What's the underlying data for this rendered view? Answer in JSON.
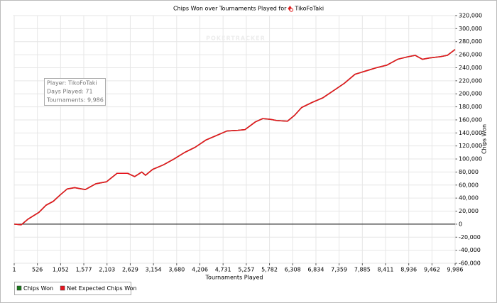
{
  "chart_data": {
    "type": "line",
    "title": "Chips Won over Tournaments Played for",
    "player": "TikoFoTaki",
    "watermark": "POKERTRACKER",
    "info": [
      "Player: TikoFoTaki",
      "Days Played: 71",
      "Tournaments: 9,986"
    ],
    "xlabel": "Tournaments Played",
    "ylabel": "Chips Won",
    "x": [
      1,
      160,
      320,
      560,
      720,
      885,
      1045,
      1200,
      1370,
      1610,
      1850,
      2090,
      2330,
      2570,
      2730,
      2890,
      2975,
      3135,
      3380,
      3620,
      3860,
      4100,
      4340,
      4580,
      4820,
      5065,
      5225,
      5465,
      5630,
      5790,
      5950,
      6190,
      6350,
      6510,
      6755,
      6995,
      7235,
      7475,
      7720,
      7960,
      8200,
      8440,
      8685,
      8925,
      9085,
      9245,
      9405,
      9650,
      9810,
      9986
    ],
    "series": [
      {
        "name": "Chips Won",
        "color": "#1a7a1a",
        "values": [
          0,
          -1000,
          8000,
          18000,
          29000,
          35000,
          45000,
          54000,
          56000,
          53000,
          62000,
          65000,
          78000,
          78000,
          73000,
          80000,
          75000,
          84000,
          91000,
          100000,
          110000,
          118000,
          129000,
          136000,
          143000,
          144000,
          145000,
          157000,
          162000,
          161000,
          159000,
          158000,
          167000,
          179000,
          187000,
          194000,
          205000,
          216000,
          230000,
          235000,
          240000,
          244000,
          253000,
          257000,
          259000,
          253000,
          255000,
          257000,
          259000,
          268000
        ]
      },
      {
        "name": "Net Expected Chips Won",
        "color": "#e8141e",
        "values": [
          0,
          -1000,
          8000,
          18000,
          29000,
          35000,
          45000,
          54000,
          56000,
          53000,
          62000,
          65000,
          78000,
          78000,
          73000,
          80000,
          75000,
          84000,
          91000,
          100000,
          110000,
          118000,
          129000,
          136000,
          143000,
          144000,
          145000,
          157000,
          162000,
          161000,
          159000,
          158000,
          167000,
          179000,
          187000,
          194000,
          205000,
          216000,
          230000,
          235000,
          240000,
          244000,
          253000,
          257000,
          259000,
          253000,
          255000,
          257000,
          259000,
          268000
        ]
      }
    ],
    "xlim": [
      1,
      9986
    ],
    "xticks": [
      1,
      526,
      {
        "value": 1052,
        "label": "1,052"
      },
      {
        "value": 1577,
        "label": "1,577"
      },
      {
        "value": 2103,
        "label": "2,103"
      },
      {
        "value": 2629,
        "label": "2,629"
      },
      {
        "value": 3154,
        "label": "3,154"
      },
      {
        "value": 3680,
        "label": "3,680"
      },
      {
        "value": 4206,
        "label": "4,206"
      },
      {
        "value": 4731,
        "label": "4,731"
      },
      {
        "value": 5257,
        "label": "5,257"
      },
      {
        "value": 5782,
        "label": "5,782"
      },
      {
        "value": 6308,
        "label": "6,308"
      },
      {
        "value": 6834,
        "label": "6,834"
      },
      {
        "value": 7359,
        "label": "7,359"
      },
      {
        "value": 7885,
        "label": "7,885"
      },
      {
        "value": 8411,
        "label": "8,411"
      },
      {
        "value": 8936,
        "label": "8,936"
      },
      {
        "value": 9462,
        "label": "9,462"
      },
      {
        "value": 9986,
        "label": "9,986"
      }
    ],
    "ylim": [
      -60000,
      320000
    ],
    "yticks": [
      {
        "value": -60000,
        "label": "-60,000"
      },
      {
        "value": -40000,
        "label": "-40,000"
      },
      {
        "value": -20000,
        "label": "-20,000"
      },
      0,
      {
        "value": 20000,
        "label": "20,000"
      },
      {
        "value": 40000,
        "label": "40,000"
      },
      {
        "value": 60000,
        "label": "60,000"
      },
      {
        "value": 80000,
        "label": "80,000"
      },
      {
        "value": 100000,
        "label": "100,000"
      },
      {
        "value": 120000,
        "label": "120,000"
      },
      {
        "value": 140000,
        "label": "140,000"
      },
      {
        "value": 160000,
        "label": "160,000"
      },
      {
        "value": 180000,
        "label": "180,000"
      },
      {
        "value": 200000,
        "label": "200,000"
      },
      {
        "value": 220000,
        "label": "220,000"
      },
      {
        "value": 240000,
        "label": "240,000"
      },
      {
        "value": 260000,
        "label": "260,000"
      },
      {
        "value": 280000,
        "label": "280,000"
      },
      {
        "value": 300000,
        "label": "300,000"
      },
      {
        "value": 320000,
        "label": "320,000"
      }
    ],
    "grid": true,
    "legend": "bottom-left"
  }
}
